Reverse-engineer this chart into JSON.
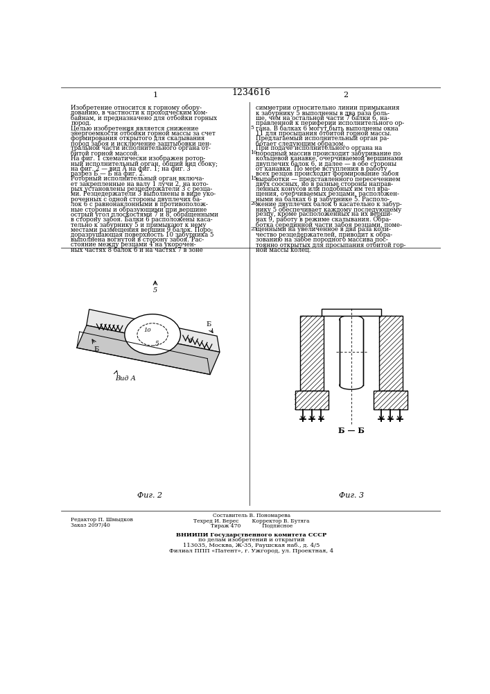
{
  "patent_number": "1234616",
  "page_left": "1",
  "page_right": "2",
  "background_color": "#ffffff",
  "text_color": "#000000",
  "line_color": "#000000",
  "col1_text": [
    "Изобретение относится к горному обору-",
    "дованию, в частности к проходческим ком-",
    "байнам, и предназначено для отбойки горных",
    "пород.",
    "Целью изобретения является снижение",
    "энергоемкости отбойки горной массы за счет",
    "формирования открытого для скалывания",
    "пород забоя и исключение заштыбовки цен-",
    "тральной части исполнительного органа от-",
    "битой горной массой.",
    "На фиг. 1 схематически изображен ротор-",
    "ный исполнительный орган, общий вид сбоку;",
    "на фиг. 2 — вид А на фиг. 1; на фиг. 3",
    "разрез Б — Б на фиг. 2.",
    "Роторный исполнительный орган включа-",
    "ет закрепленные на валу 1 лучи 2, на кото-",
    "рых установлены резцедержатели 3 с резца-",
    "ми. Резцедержатели 3 выполнены в виде уко-",
    "роченных с одной стороны двуплечих ба-",
    "лок 6 с равнонаклонными в противополож-",
    "ные стороны и образующими при вершине",
    "острый угол плоскостями 7 и 8, обращенными",
    "в сторону забоя. Балки 6 расположены каса-",
    "тельно к забурнику 5 и примыкают к нему",
    "местами размещения вершин 9 балок. Поро-",
    "доразрушающая поверхность 10 забурника 5",
    "выполнена вогнутой в сторону забоя. Рас-",
    "стояние между резцами 4 на укорочен-",
    "ных частях 8 балок 6 и на частях 7 в зоне"
  ],
  "col2_text": [
    "симметрии относительно линии примыкания",
    "к забурнику 5 выполнены в два раза боль-",
    "ше, чем на остальной части 7 балки 6, на-",
    "правленной к периферии исполнительного ор-",
    "гана. В балках 6 могут быть выполнены окна",
    "11 для просыпания отбитой горной массы.",
    "Предлагаемый исполнительный орган ра-",
    "ботает следующим образом.",
    "При подаче исполнительного органа на",
    "породный массив происходит забуривание по",
    "кольцевой канавке, очерчиваемой вершинами",
    "двуплечих балок 6, и далее — в обе стороны",
    "от канавки. По мере вступления в работу",
    "всех резцов происходит формирование забоя",
    "выработки — представленного пересечением",
    "двух соосных, но в разные стороны направ-",
    "ленных конусов или подобных им тел вра-",
    "щения, очерчиваемых резцами, расположен-",
    "ными на балках 6 и забурнике 5. Располо-",
    "жение двуплечих балок 6 касательно к забур-",
    "нику 5 обеспечивает каждому последующему",
    "резцу, кроме расположенных на их верши-",
    "нах 9, работу в режиме скалывания. Обра-",
    "ботка серединной части забоя резцами, поме-",
    "щенными на увеличенное в два раза коли-",
    "чество резцедержателей, приводит к обра-",
    "зованию на забое породного массива пос-",
    "тоянно открытых для просыпания отбитой гор-",
    "ной массы колец."
  ],
  "fig2_label": "Фиг. 2",
  "fig3_label": "Фиг. 3",
  "view_label": "Вид А",
  "section_label": "Б — Б",
  "footer_left": [
    "Редактор П. Шмыдков",
    "Заказ 2097/40"
  ],
  "footer_center": [
    "Составитель В. Пономарева",
    "Техред И. Верес        Корректор В. Бутяга",
    "Тираж 470             Подписное"
  ],
  "footer_bottom": [
    "ВНИИПИ Государственного комитета СССР",
    "по делам изобретений и открытий",
    "113035, Москва, Ж-35, Раушская наб., д. 4/5",
    "Филиал ППП «Патент», г. Ужгород, ул. Проектная, 4"
  ]
}
